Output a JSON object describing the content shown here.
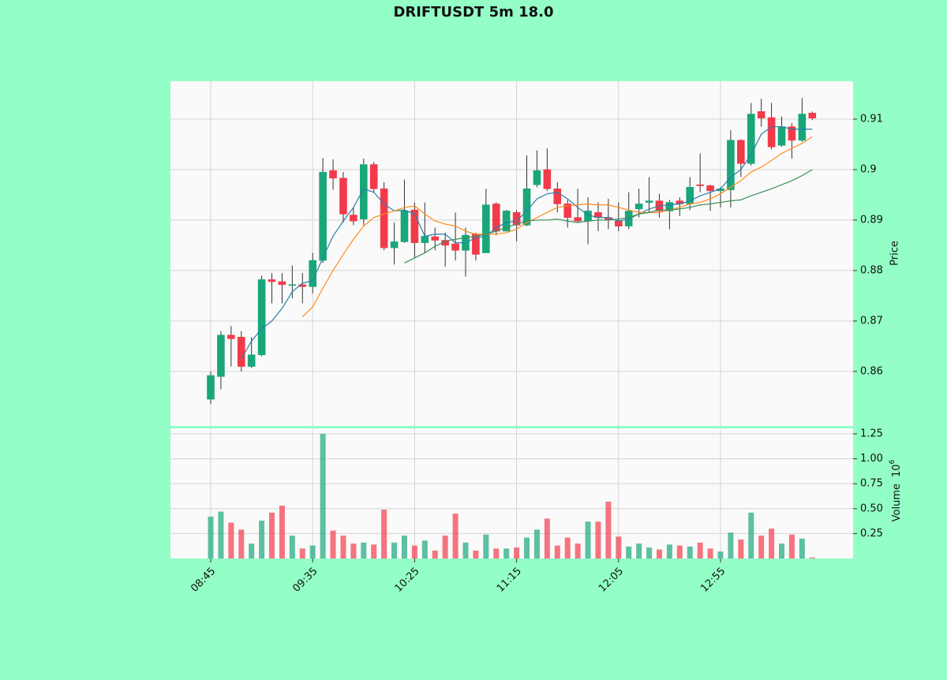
{
  "chart_data": {
    "type": "candlestick",
    "title": "DRIFTUSDT 5m 18.0",
    "categories": [
      "08:45",
      null,
      null,
      null,
      null,
      null,
      null,
      null,
      null,
      null,
      "09:35",
      null,
      null,
      null,
      null,
      null,
      null,
      null,
      null,
      null,
      "10:25",
      null,
      null,
      null,
      null,
      null,
      null,
      null,
      null,
      null,
      "11:15",
      null,
      null,
      null,
      null,
      null,
      null,
      null,
      null,
      null,
      "12:05",
      null,
      null,
      null,
      null,
      null,
      null,
      null,
      null,
      null,
      "12:55",
      null,
      null,
      null,
      null,
      null,
      null,
      null,
      null,
      null
    ],
    "open": [
      0.8545,
      0.859,
      0.8672,
      0.8668,
      0.861,
      0.8633,
      0.8782,
      0.8778,
      0.8772,
      0.8772,
      0.8768,
      0.882,
      0.8998,
      0.8983,
      0.891,
      0.8902,
      0.901,
      0.8962,
      0.8845,
      0.8857,
      0.892,
      0.8855,
      0.8867,
      0.886,
      0.8853,
      0.884,
      0.8872,
      0.8835,
      0.8932,
      0.8878,
      0.8915,
      0.889,
      0.897,
      0.9,
      0.8962,
      0.8932,
      0.8905,
      0.8898,
      0.8915,
      0.8905,
      0.8898,
      0.8888,
      0.8922,
      0.8935,
      0.8938,
      0.8918,
      0.8938,
      0.8932,
      0.897,
      0.8968,
      0.8958,
      0.896,
      0.9058,
      0.9012,
      0.9115,
      0.9103,
      0.9048,
      0.9085,
      0.9058,
      0.9112
    ],
    "high": [
      0.86,
      0.868,
      0.869,
      0.868,
      0.8668,
      0.879,
      0.8795,
      0.8795,
      0.881,
      0.8795,
      0.8835,
      0.9023,
      0.902,
      0.8995,
      0.8925,
      0.9022,
      0.9015,
      0.8975,
      0.8895,
      0.898,
      0.8935,
      0.8935,
      0.8885,
      0.8875,
      0.8915,
      0.8885,
      0.8875,
      0.8962,
      0.8935,
      0.892,
      0.892,
      0.9028,
      0.9038,
      0.9042,
      0.8975,
      0.894,
      0.8962,
      0.8945,
      0.8935,
      0.8942,
      0.8935,
      0.8955,
      0.8962,
      0.8985,
      0.8952,
      0.894,
      0.8945,
      0.8985,
      0.9032,
      0.897,
      0.8965,
      0.9078,
      0.906,
      0.9132,
      0.914,
      0.9132,
      0.9105,
      0.9092,
      0.9142,
      0.9115
    ],
    "low": [
      0.8535,
      0.8565,
      0.861,
      0.86,
      0.8607,
      0.863,
      0.8735,
      0.8735,
      0.8745,
      0.8735,
      0.8755,
      0.8815,
      0.896,
      0.8895,
      0.889,
      0.889,
      0.8955,
      0.884,
      0.8812,
      0.8855,
      0.8825,
      0.8835,
      0.884,
      0.8808,
      0.882,
      0.8788,
      0.882,
      0.8835,
      0.887,
      0.8878,
      0.8858,
      0.8888,
      0.8965,
      0.8958,
      0.8915,
      0.8885,
      0.8895,
      0.8852,
      0.8878,
      0.8882,
      0.8878,
      0.8882,
      0.8905,
      0.8915,
      0.8905,
      0.8882,
      0.8908,
      0.892,
      0.8955,
      0.8918,
      0.8925,
      0.8925,
      0.8985,
      0.9008,
      0.9085,
      0.904,
      0.9045,
      0.9022,
      0.9055,
      0.9098
    ],
    "close": [
      0.8592,
      0.8672,
      0.8665,
      0.861,
      0.8633,
      0.8782,
      0.8778,
      0.8772,
      0.8772,
      0.8768,
      0.882,
      0.8995,
      0.8983,
      0.8912,
      0.8898,
      0.901,
      0.8962,
      0.8845,
      0.8857,
      0.8918,
      0.8855,
      0.8868,
      0.886,
      0.885,
      0.884,
      0.887,
      0.8832,
      0.893,
      0.8878,
      0.8918,
      0.889,
      0.8962,
      0.8998,
      0.8962,
      0.8932,
      0.8905,
      0.8898,
      0.8918,
      0.8905,
      0.89,
      0.8888,
      0.8918,
      0.8932,
      0.8938,
      0.8918,
      0.8935,
      0.8932,
      0.8965,
      0.8968,
      0.8958,
      0.8962,
      0.9058,
      0.9012,
      0.911,
      0.9102,
      0.9045,
      0.9085,
      0.9058,
      0.911,
      0.9102
    ],
    "volume": [
      0.42,
      0.47,
      0.36,
      0.29,
      0.15,
      0.38,
      0.46,
      0.53,
      0.23,
      0.1,
      0.13,
      1.25,
      0.28,
      0.23,
      0.15,
      0.16,
      0.14,
      0.49,
      0.16,
      0.23,
      0.13,
      0.18,
      0.08,
      0.23,
      0.45,
      0.16,
      0.08,
      0.24,
      0.1,
      0.1,
      0.11,
      0.21,
      0.29,
      0.4,
      0.13,
      0.21,
      0.15,
      0.37,
      0.37,
      0.57,
      0.22,
      0.12,
      0.15,
      0.11,
      0.09,
      0.14,
      0.13,
      0.12,
      0.16,
      0.1,
      0.07,
      0.26,
      0.19,
      0.46,
      0.23,
      0.3,
      0.15,
      0.24,
      0.2,
      0.01
    ],
    "up_color": "#18a67a",
    "down_color": "#f23a4a",
    "lines": [
      {
        "color": "#2a7fa6",
        "values": [
          null,
          null,
          null,
          0.8625,
          0.866,
          0.8685,
          0.87,
          0.8725,
          0.8758,
          0.8775,
          0.878,
          0.8825,
          0.8868,
          0.8898,
          0.8925,
          0.8962,
          0.8955,
          0.8932,
          0.8918,
          0.892,
          0.8912,
          0.8868,
          0.8872,
          0.8872,
          0.8855,
          0.8855,
          0.8865,
          0.8868,
          0.8885,
          0.8895,
          0.8898,
          0.8918,
          0.8942,
          0.8952,
          0.8955,
          0.8942,
          0.8925,
          0.891,
          0.8905,
          0.8905,
          0.8898,
          0.8902,
          0.8912,
          0.8922,
          0.8928,
          0.893,
          0.8932,
          0.8938,
          0.8948,
          0.8955,
          0.8962,
          0.8985,
          0.9,
          0.903,
          0.907,
          0.9085,
          0.9085,
          0.908,
          0.908,
          0.908
        ]
      },
      {
        "color": "#ff8c1a",
        "values": [
          null,
          null,
          null,
          null,
          null,
          null,
          null,
          null,
          null,
          0.8708,
          0.8728,
          0.8765,
          0.88,
          0.8832,
          0.8862,
          0.8888,
          0.8905,
          0.8912,
          0.8918,
          0.8925,
          0.8928,
          0.8912,
          0.8898,
          0.8892,
          0.8888,
          0.8878,
          0.8872,
          0.8872,
          0.8872,
          0.8875,
          0.8882,
          0.8895,
          0.8905,
          0.8915,
          0.8925,
          0.8928,
          0.893,
          0.8932,
          0.893,
          0.893,
          0.8925,
          0.892,
          0.8915,
          0.8915,
          0.8915,
          0.892,
          0.8925,
          0.8932,
          0.8935,
          0.8942,
          0.8952,
          0.8965,
          0.8978,
          0.8995,
          0.9005,
          0.9018,
          0.9032,
          0.9042,
          0.9052,
          0.9065
        ]
      },
      {
        "color": "#3a8f5a",
        "values": [
          null,
          null,
          null,
          null,
          null,
          null,
          null,
          null,
          null,
          null,
          null,
          null,
          null,
          null,
          null,
          null,
          null,
          null,
          null,
          0.8815,
          0.8825,
          0.8835,
          0.8848,
          0.8858,
          0.8862,
          0.8865,
          0.8868,
          0.8872,
          0.8878,
          0.8885,
          0.8892,
          0.8898,
          0.89,
          0.89,
          0.8902,
          0.8898,
          0.8895,
          0.8898,
          0.89,
          0.89,
          0.8902,
          0.8905,
          0.8912,
          0.8915,
          0.892,
          0.892,
          0.8922,
          0.8925,
          0.893,
          0.8932,
          0.8935,
          0.8938,
          0.894,
          0.8948,
          0.8955,
          0.8962,
          0.897,
          0.8978,
          0.8988,
          0.9
        ]
      }
    ],
    "ylabel": "Price",
    "ylim": [
      0.8492,
      0.9175
    ],
    "yticks": [
      0.86,
      0.87,
      0.88,
      0.89,
      0.9,
      0.91
    ],
    "volume_label": "Volume",
    "volume_scale_base": "10",
    "volume_scale_exponent": "6",
    "y2lim": [
      0,
      1.305
    ],
    "y2ticks": [
      0.25,
      {
        "value": 0.5,
        "label": "0.50"
      },
      0.75,
      {
        "value": 1,
        "label": "1.00"
      },
      1.25
    ],
    "grid": true
  }
}
